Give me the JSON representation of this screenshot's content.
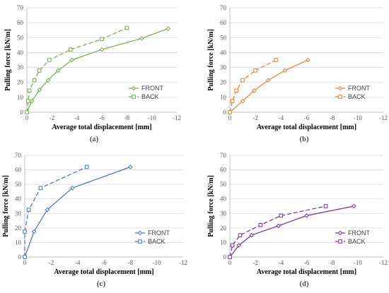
{
  "chart_data": [
    {
      "type": "line",
      "panel_label": "(a)",
      "color": "#70AD47",
      "xlabel": "Average total displacement [mm]",
      "ylabel": "Pulling force [kN/m]",
      "xlim": [
        0,
        -12
      ],
      "ylim": [
        0,
        70
      ],
      "xticks": [
        "0",
        "-2",
        "-4",
        "-6",
        "-8",
        "-10",
        "-12"
      ],
      "yticks": [
        "0",
        "10",
        "20",
        "30",
        "40",
        "50",
        "60",
        "70"
      ],
      "grid": true,
      "legend_position": "bottom-right",
      "series": [
        {
          "name": "FRONT",
          "marker": "diamond",
          "dash": false,
          "x": [
            0,
            -0.4,
            -1,
            -1.7,
            -2.5,
            -3.6,
            -6.0,
            -9.2,
            -11.3
          ],
          "y": [
            0,
            7.5,
            15,
            21.5,
            28,
            35,
            42,
            49.5,
            56
          ]
        },
        {
          "name": "BACK",
          "marker": "square",
          "dash": true,
          "x": [
            0,
            -0.1,
            -0.2,
            -0.6,
            -1.0,
            -1.8,
            -3.5,
            -6.0,
            -8.0
          ],
          "y": [
            0,
            7.5,
            14.5,
            21.5,
            28,
            35,
            42,
            49,
            56.5
          ]
        }
      ]
    },
    {
      "type": "line",
      "panel_label": "(b)",
      "color": "#ED7D31",
      "xlabel": "Average total displacement [mm]",
      "ylabel": "Pulling force [kN/m]",
      "xlim": [
        0,
        -12
      ],
      "ylim": [
        0,
        70
      ],
      "xticks": [
        "0",
        "-2",
        "-4",
        "-6",
        "-8",
        "-10",
        "-12"
      ],
      "yticks": [
        "0",
        "10",
        "20",
        "30",
        "40",
        "50",
        "60",
        "70"
      ],
      "grid": true,
      "legend_position": "bottom-right",
      "series": [
        {
          "name": "FRONT",
          "marker": "diamond",
          "dash": false,
          "x": [
            0,
            -1.0,
            -1.9,
            -3.0,
            -4.3,
            -6.1
          ],
          "y": [
            0,
            7.5,
            14.5,
            21.5,
            28,
            35
          ]
        },
        {
          "name": "BACK",
          "marker": "square",
          "dash": true,
          "x": [
            0,
            -0.2,
            -0.5,
            -1.0,
            -2.0,
            -3.6
          ],
          "y": [
            0,
            7.5,
            14.5,
            21.5,
            28,
            35
          ]
        }
      ]
    },
    {
      "type": "line",
      "panel_label": "(c)",
      "color": "#4472C4",
      "xlabel": "Average total displacement [mm]",
      "ylabel": "Pulling force [kN/m]",
      "xlim": [
        0,
        -12
      ],
      "ylim": [
        0,
        70
      ],
      "xticks": [
        "0",
        "-2",
        "-4",
        "-6",
        "-8",
        "-10",
        "-12"
      ],
      "yticks": [
        "0",
        "10",
        "20",
        "30",
        "40",
        "50",
        "60",
        "70"
      ],
      "grid": true,
      "legend_position": "bottom-right",
      "series": [
        {
          "name": "FRONT",
          "marker": "diamond",
          "dash": false,
          "x": [
            0,
            -0.7,
            -1.7,
            -3.6,
            -8.0
          ],
          "y": [
            0,
            17.5,
            32.5,
            47.5,
            62
          ]
        },
        {
          "name": "BACK",
          "marker": "square",
          "dash": true,
          "x": [
            0,
            0,
            -0.3,
            -1.2,
            -4.7
          ],
          "y": [
            0,
            17.5,
            32.5,
            47.5,
            62
          ]
        }
      ]
    },
    {
      "type": "line",
      "panel_label": "(d)",
      "color": "#7030A0",
      "xlabel": "Average total displacement [mm]",
      "ylabel": "Pulling force [kN/m]",
      "xlim": [
        0,
        -12
      ],
      "ylim": [
        0,
        70
      ],
      "xticks": [
        "0",
        "-2",
        "-4",
        "-6",
        "-8",
        "-10",
        "-12"
      ],
      "yticks": [
        "0",
        "10",
        "20",
        "30",
        "40",
        "50",
        "60",
        "70"
      ],
      "grid": true,
      "legend_position": "bottom-right",
      "series": [
        {
          "name": "FRONT",
          "marker": "diamond",
          "dash": false,
          "x": [
            0,
            -0.7,
            -1.7,
            -3.8,
            -6.0,
            -9.7
          ],
          "y": [
            0,
            8,
            15,
            21.5,
            28.5,
            35
          ]
        },
        {
          "name": "BACK",
          "marker": "square",
          "dash": true,
          "x": [
            0,
            -0.2,
            -0.8,
            -2.4,
            -4.0,
            -7.5
          ],
          "y": [
            0,
            8,
            15,
            22,
            28.5,
            35
          ]
        }
      ]
    }
  ]
}
